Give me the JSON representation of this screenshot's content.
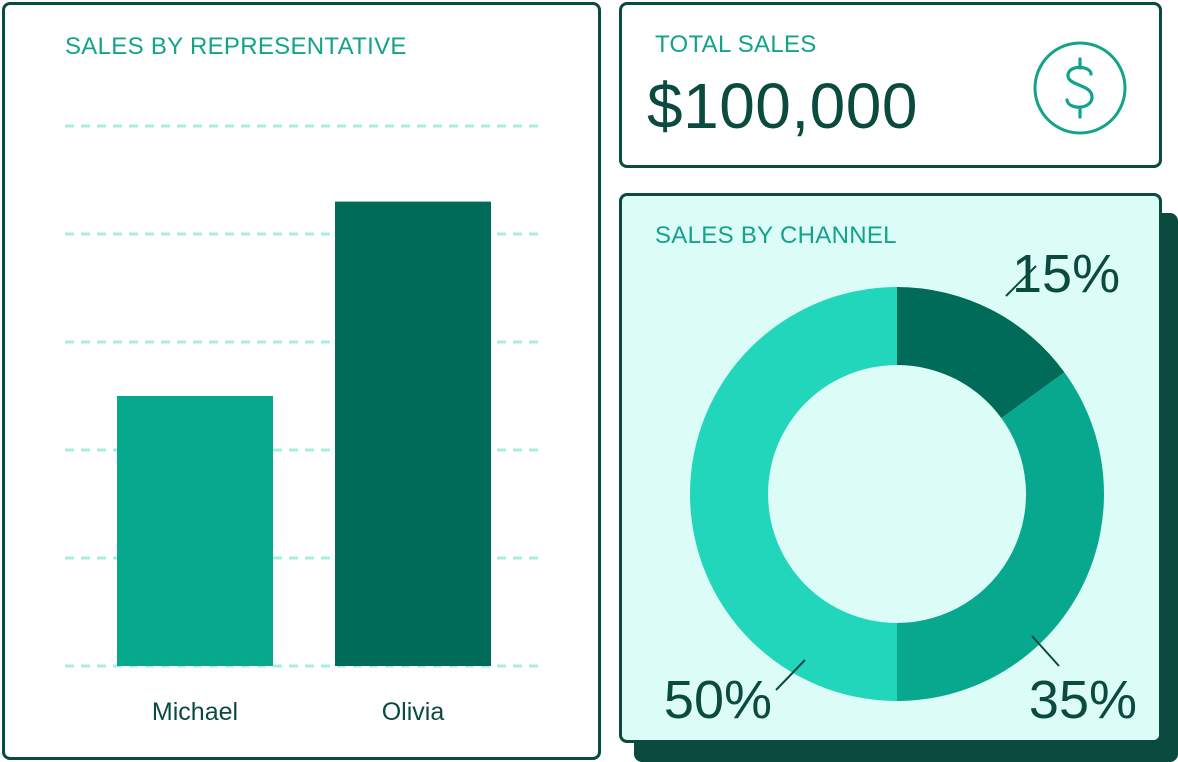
{
  "rep_panel": {
    "title": "SALES BY REPRESENTATIVE"
  },
  "total_panel": {
    "title": "TOTAL SALES",
    "value": "$100,000",
    "icon": "dollar-circle-icon"
  },
  "channel_panel": {
    "title": "SALES BY CHANNEL"
  },
  "colors": {
    "dark_green": "#006b58",
    "mid_green": "#08a88e",
    "light_green": "#22d6bc",
    "panel_border": "#0b4a3e",
    "title_text": "#12a38a",
    "grid": "#a5eee0",
    "channel_bg": "#dcfcf7"
  },
  "chart_data": [
    {
      "type": "bar",
      "title": "SALES BY REPRESENTATIVE",
      "categories": [
        "Michael",
        "Olivia"
      ],
      "values": [
        25,
        43
      ],
      "ylim": [
        0,
        50
      ],
      "grid": true,
      "colors": [
        "#08a88e",
        "#006b58"
      ]
    },
    {
      "type": "pie",
      "title": "SALES BY CHANNEL",
      "donut": true,
      "values": [
        15,
        35,
        50
      ],
      "labels": [
        "15%",
        "35%",
        "50%"
      ],
      "colors": [
        "#006b58",
        "#08a88e",
        "#22d6bc"
      ]
    }
  ]
}
